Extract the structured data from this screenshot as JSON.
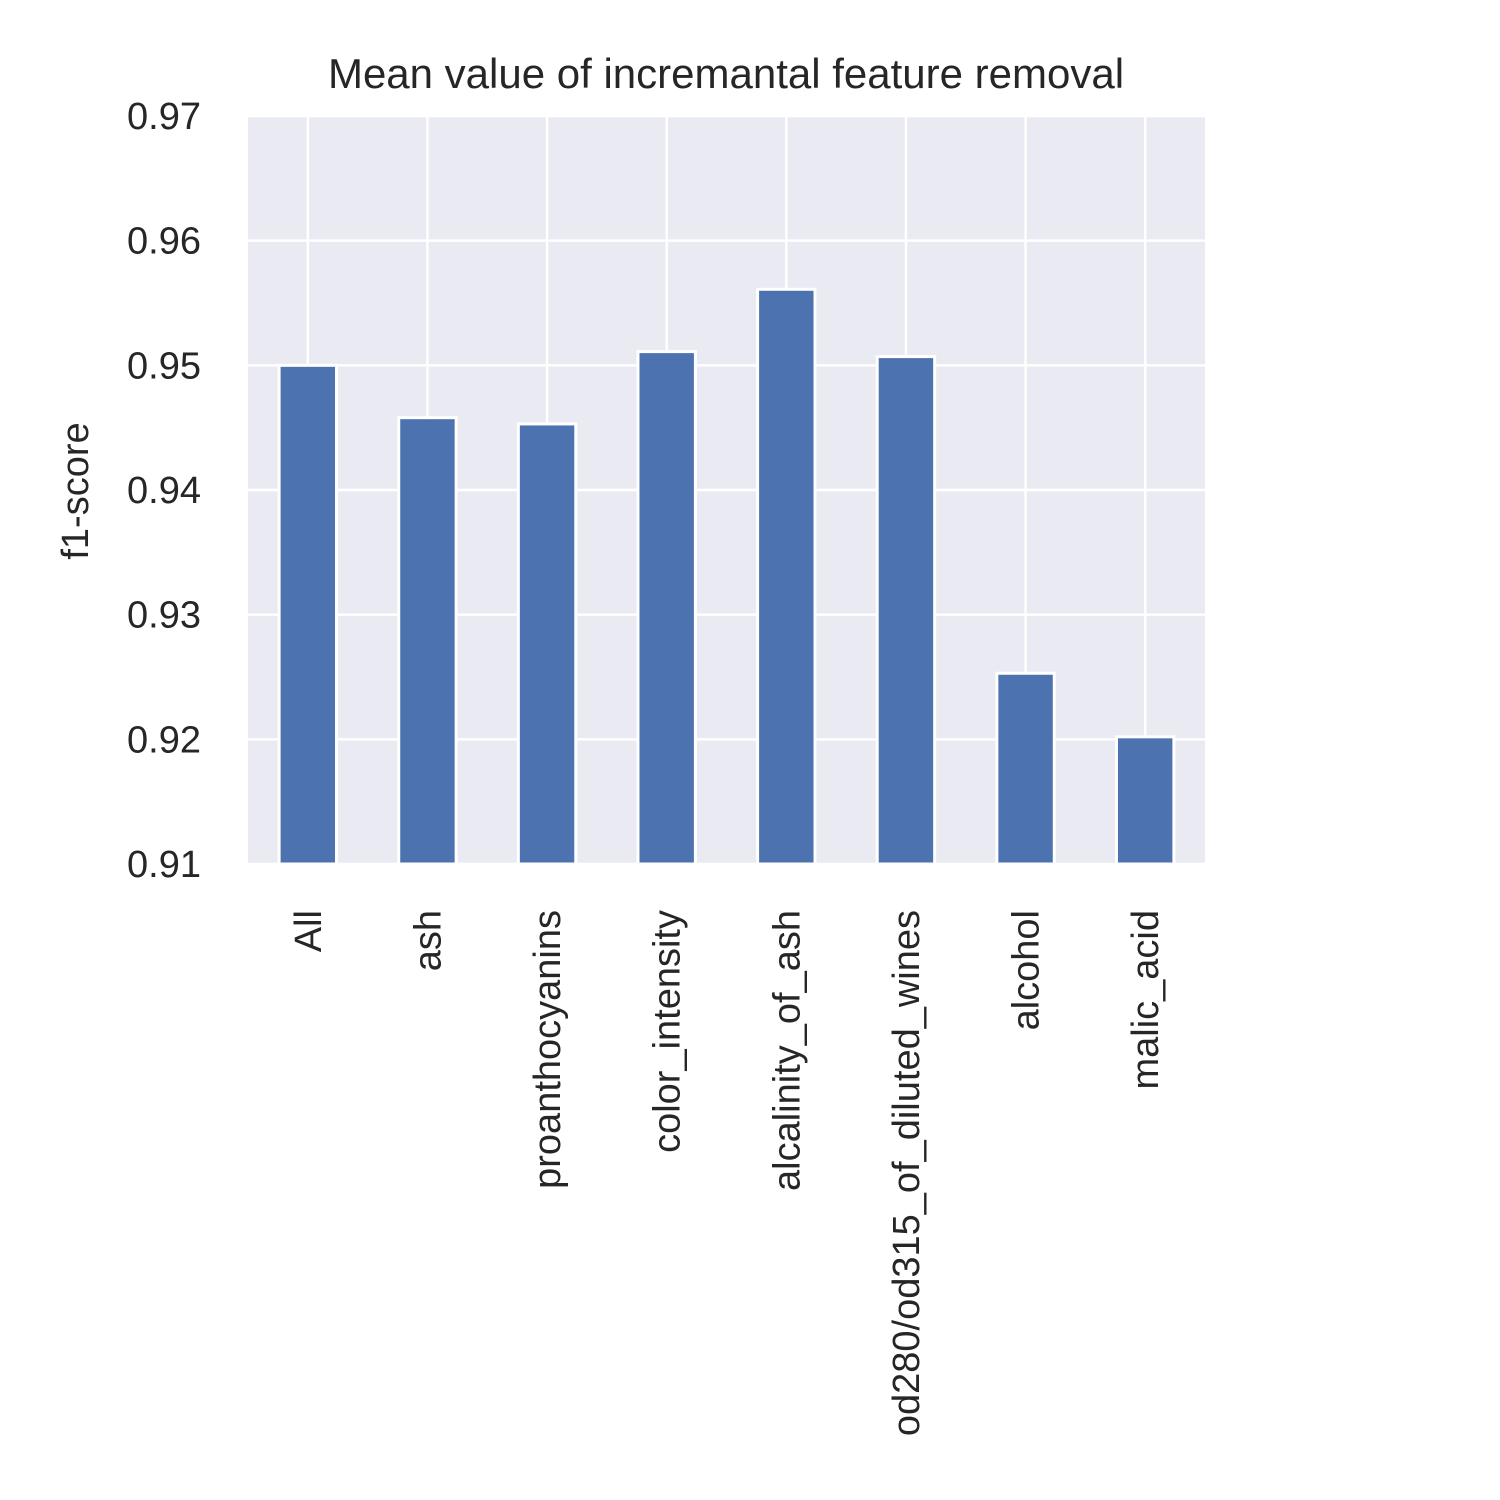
{
  "chart_data": {
    "type": "bar",
    "title": "Mean value of incremantal feature removal",
    "xlabel": "",
    "ylabel": "f1-score",
    "categories": [
      "All",
      "ash",
      "proanthocyanins",
      "color_intensity",
      "alcalinity_of_ash",
      "od280/od315_of_diluted_wines",
      "alcohol",
      "malic_acid"
    ],
    "values": [
      0.95,
      0.9458,
      0.9453,
      0.9511,
      0.9561,
      0.9507,
      0.9253,
      0.9202
    ],
    "ylim": [
      0.91,
      0.97
    ],
    "yticks": [
      "0.91",
      "0.92",
      "0.93",
      "0.94",
      "0.95",
      "0.96",
      "0.97"
    ],
    "grid": true,
    "colors": {
      "bar": "#4c72b0",
      "plot_background": "#eaeaf2",
      "grid": "#ffffff",
      "text": "#262626"
    }
  }
}
